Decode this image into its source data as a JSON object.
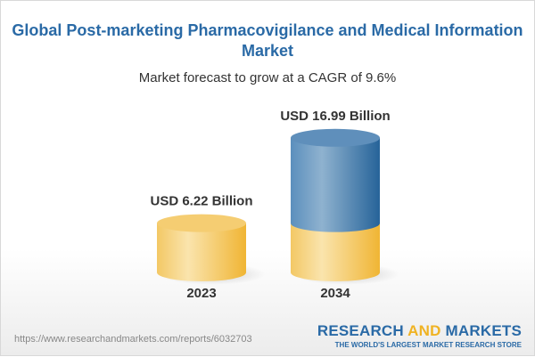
{
  "title": "Global Post-marketing Pharmacovigilance and Medical Information Market",
  "subtitle": "Market forecast to grow at a CAGR of 9.6%",
  "chart_data": {
    "type": "bar",
    "style": "3d-cylinder",
    "categories": [
      "2023",
      "2034"
    ],
    "values": [
      6.22,
      16.99
    ],
    "data_labels": [
      "USD 6.22 Billion",
      "USD 16.99 Billion"
    ],
    "unit": "USD Billion",
    "colors": {
      "base": "#f3c45a",
      "growth": "#3f7fb3"
    }
  },
  "footer": {
    "url": "https://www.researchandmarkets.com/reports/6032703",
    "logo_part1": "RESEARCH ",
    "logo_part2": "AND",
    "logo_part3": " MARKETS",
    "logo_tagline": "THE WORLD'S LARGEST MARKET RESEARCH STORE"
  }
}
